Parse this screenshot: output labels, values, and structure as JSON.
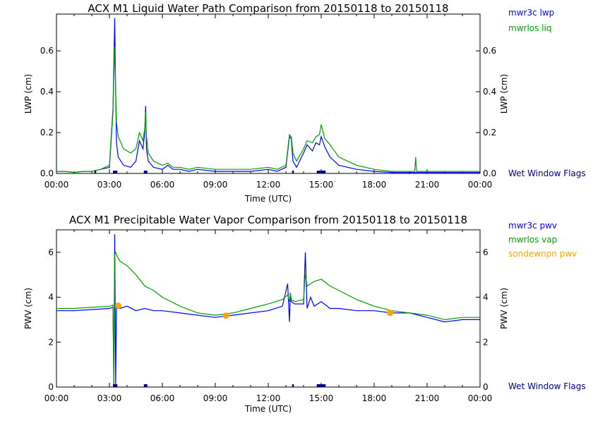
{
  "chart_data": [
    {
      "type": "line",
      "title": "ACX M1 Liquid Water Path Comparison from 20150118 to 20150118",
      "xlabel": "Time (UTC)",
      "ylabel": "LWP (cm)",
      "right_ylabel": "LWP (cm)",
      "xlim": [
        0,
        24
      ],
      "ylim": [
        0,
        0.78
      ],
      "xticks": [
        "00:00",
        "03:00",
        "06:00",
        "09:00",
        "12:00",
        "15:00",
        "18:00",
        "21:00",
        "00:00"
      ],
      "yticks": [
        "0.0",
        "0.2",
        "0.4",
        "0.6"
      ],
      "ytick_values": [
        0,
        0.2,
        0.4,
        0.6
      ],
      "flags_label": "Wet Window Flags",
      "flag_intervals": [
        [
          2.15,
          2.25
        ],
        [
          3.2,
          3.45
        ],
        [
          4.95,
          5.15
        ],
        [
          13.35,
          13.45
        ],
        [
          14.75,
          15.25
        ]
      ],
      "series": [
        {
          "name": "mwr3c lwp",
          "color": "#0000ff",
          "x": [
            0,
            0.5,
            1,
            1.5,
            2,
            2.5,
            3.0,
            3.2,
            3.3,
            3.35,
            3.4,
            3.5,
            3.8,
            4.2,
            4.5,
            4.7,
            4.8,
            4.9,
            5.0,
            5.05,
            5.1,
            5.2,
            5.5,
            6.0,
            6.3,
            6.6,
            7.0,
            7.5,
            8.0,
            9.0,
            10.0,
            11.0,
            12.0,
            12.5,
            13.0,
            13.2,
            13.3,
            13.4,
            13.6,
            14.0,
            14.2,
            14.5,
            14.7,
            14.9,
            15.0,
            15.2,
            15.5,
            16.0,
            17.0,
            18.0,
            19.0,
            20.0,
            21.0,
            22.0,
            23.0,
            24.0
          ],
          "y": [
            0.01,
            0.01,
            0.005,
            0.01,
            0.01,
            0.02,
            0.03,
            0.3,
            0.76,
            0.4,
            0.15,
            0.08,
            0.04,
            0.03,
            0.06,
            0.16,
            0.14,
            0.12,
            0.2,
            0.33,
            0.12,
            0.06,
            0.03,
            0.02,
            0.04,
            0.02,
            0.02,
            0.01,
            0.02,
            0.01,
            0.01,
            0.01,
            0.02,
            0.01,
            0.03,
            0.18,
            0.17,
            0.06,
            0.03,
            0.1,
            0.14,
            0.11,
            0.15,
            0.14,
            0.18,
            0.13,
            0.08,
            0.04,
            0.02,
            0.01,
            0.005,
            0.005,
            0.005,
            0.005,
            0.005,
            0.005
          ]
        },
        {
          "name": "mwrlos liq",
          "color": "#00a000",
          "x": [
            0,
            0.5,
            1,
            1.5,
            2,
            2.5,
            3.0,
            3.2,
            3.3,
            3.35,
            3.4,
            3.5,
            3.8,
            4.2,
            4.5,
            4.7,
            4.8,
            4.9,
            5.0,
            5.05,
            5.1,
            5.2,
            5.5,
            6.0,
            6.3,
            6.6,
            7.0,
            7.5,
            8.0,
            9.0,
            10.0,
            11.0,
            12.0,
            12.5,
            13.0,
            13.2,
            13.3,
            13.4,
            13.6,
            14.0,
            14.2,
            14.5,
            14.7,
            14.9,
            15.0,
            15.2,
            15.5,
            16.0,
            17.0,
            18.0,
            19.0,
            20.0,
            20.3,
            20.35,
            20.4,
            21.0,
            22.0,
            23.0,
            24.0
          ],
          "y": [
            0.01,
            0.01,
            0.005,
            0.01,
            0.01,
            0.02,
            0.04,
            0.32,
            0.62,
            0.4,
            0.25,
            0.18,
            0.12,
            0.1,
            0.12,
            0.2,
            0.18,
            0.16,
            0.22,
            0.3,
            0.18,
            0.1,
            0.06,
            0.04,
            0.05,
            0.03,
            0.03,
            0.02,
            0.03,
            0.02,
            0.02,
            0.02,
            0.03,
            0.02,
            0.04,
            0.19,
            0.18,
            0.1,
            0.06,
            0.12,
            0.16,
            0.15,
            0.18,
            0.19,
            0.24,
            0.17,
            0.14,
            0.08,
            0.04,
            0.02,
            0.01,
            0.01,
            0.01,
            0.08,
            0.01,
            0.01,
            0.01,
            0.01,
            0.01
          ]
        }
      ]
    },
    {
      "type": "line",
      "title": "ACX M1 Precipitable Water Vapor Comparison from 20150118 to 20150118",
      "xlabel": "Time (UTC)",
      "ylabel": "PWV (cm)",
      "right_ylabel": "PWV (cm)",
      "xlim": [
        0,
        24
      ],
      "ylim": [
        0,
        7
      ],
      "xticks": [
        "00:00",
        "03:00",
        "06:00",
        "09:00",
        "12:00",
        "15:00",
        "18:00",
        "21:00",
        "00:00"
      ],
      "yticks": [
        "0",
        "2",
        "4",
        "6"
      ],
      "ytick_values": [
        0,
        2,
        4,
        6
      ],
      "flags_label": "Wet Window Flags",
      "flag_intervals": [
        [
          3.2,
          3.45
        ],
        [
          4.95,
          5.15
        ],
        [
          13.35,
          13.45
        ],
        [
          14.75,
          15.25
        ]
      ],
      "series": [
        {
          "name": "mwr3c pwv",
          "color": "#0000ff",
          "x": [
            0,
            1,
            2,
            3.0,
            3.2,
            3.25,
            3.3,
            3.35,
            3.4,
            3.45,
            3.6,
            4.0,
            4.5,
            5.0,
            5.5,
            6.0,
            7.0,
            8.0,
            9.0,
            10.0,
            11.0,
            12.0,
            12.8,
            13.1,
            13.2,
            13.25,
            13.3,
            13.5,
            14.0,
            14.1,
            14.2,
            14.4,
            14.6,
            15.0,
            15.5,
            16.0,
            17.0,
            18.0,
            19.0,
            20.0,
            21.0,
            22.0,
            23.0,
            24.0
          ],
          "y": [
            3.4,
            3.4,
            3.45,
            3.5,
            3.55,
            0.0,
            6.8,
            0.0,
            3.6,
            3.5,
            3.5,
            3.6,
            3.4,
            3.5,
            3.4,
            3.4,
            3.3,
            3.2,
            3.1,
            3.2,
            3.3,
            3.4,
            3.6,
            4.6,
            2.9,
            4.2,
            3.8,
            3.7,
            3.7,
            6.0,
            3.5,
            4.0,
            3.6,
            3.8,
            3.5,
            3.5,
            3.4,
            3.4,
            3.3,
            3.3,
            3.1,
            2.9,
            3.0,
            3.0
          ]
        },
        {
          "name": "mwrlos vap",
          "color": "#00a000",
          "x": [
            0,
            1,
            2,
            3.0,
            3.2,
            3.25,
            3.3,
            3.35,
            3.4,
            3.45,
            3.6,
            4.0,
            4.5,
            5.0,
            5.5,
            6.0,
            7.0,
            8.0,
            9.0,
            10.0,
            11.0,
            12.0,
            12.8,
            13.1,
            13.2,
            13.25,
            13.3,
            13.5,
            14.0,
            14.1,
            14.2,
            14.4,
            14.6,
            15.0,
            15.5,
            16.0,
            17.0,
            18.0,
            19.0,
            20.0,
            21.0,
            22.0,
            23.0,
            24.0
          ],
          "y": [
            3.5,
            3.5,
            3.55,
            3.6,
            3.65,
            0.0,
            5.9,
            6.0,
            5.9,
            5.8,
            5.6,
            5.4,
            5.0,
            4.5,
            4.3,
            4.0,
            3.6,
            3.3,
            3.2,
            3.3,
            3.5,
            3.7,
            3.9,
            4.1,
            3.8,
            4.2,
            3.9,
            3.8,
            3.9,
            5.0,
            4.5,
            4.6,
            4.7,
            4.8,
            4.5,
            4.3,
            3.9,
            3.6,
            3.4,
            3.3,
            3.2,
            3.0,
            3.1,
            3.1
          ]
        },
        {
          "name": "sondewnpn pwv",
          "color": "#ffa500",
          "marker": "circle",
          "x": [
            3.5,
            9.6,
            18.9
          ],
          "y": [
            3.62,
            3.18,
            3.3
          ]
        }
      ]
    }
  ]
}
